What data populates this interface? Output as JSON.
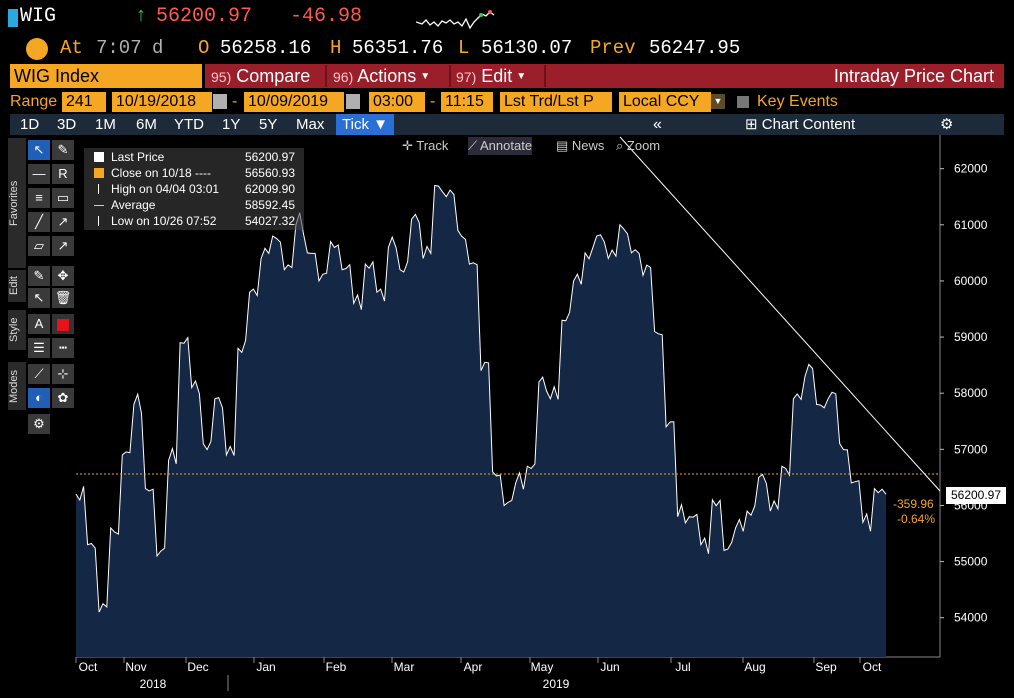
{
  "quote": {
    "ticker": "WIG",
    "last": "56200.97",
    "change": "-46.98",
    "at_label": "At",
    "time": "7:07",
    "time_suffix": "d",
    "open_label": "O",
    "open": "56258.16",
    "high_label": "H",
    "high": "56351.76",
    "low_label": "L",
    "low": "56130.07",
    "prev_label": "Prev",
    "prev": "56247.95"
  },
  "function_bar": {
    "security": "WIG Index",
    "compare_num": "95)",
    "compare": "Compare",
    "actions_num": "96)",
    "actions": "Actions",
    "edit_num": "97)",
    "edit": "Edit",
    "title": "Intraday Price Chart"
  },
  "range_bar": {
    "range_label": "Range",
    "days": "241",
    "start_date": "10/19/2018",
    "end_date": "10/09/2019",
    "start_time": "03:00",
    "end_time": "11:15",
    "trade_type": "Lst Trd/Lst P",
    "currency": "Local CCY",
    "key_events": "Key Events"
  },
  "tabs": [
    "1D",
    "3D",
    "1M",
    "6M",
    "YTD",
    "1Y",
    "5Y",
    "Max",
    "Tick ▼"
  ],
  "chart_content": "Chart Content",
  "toolbox": {
    "favorites": "Favorites",
    "edit": "Edit",
    "style": "Style",
    "modes": "Modes"
  },
  "annotate_bar": [
    "Track",
    "Annotate",
    "News",
    "Zoom"
  ],
  "legend": [
    {
      "label": "Last Price",
      "value": "56200.97",
      "color": "#ffffff"
    },
    {
      "label": "Close on 10/18 ----",
      "value": "56560.93",
      "color": "#f5a623"
    },
    {
      "label": "High on 04/04 03:01",
      "value": "62009.90",
      "color": "#ffffff"
    },
    {
      "label": "Average",
      "value": "58592.45",
      "color": "#ffffff"
    },
    {
      "label": "Low on 10/26 07:52",
      "value": "54027.32",
      "color": "#ffffff"
    }
  ],
  "price_tag": "56200.97",
  "change_tag": "-359.96",
  "change_pct_tag": "-0.64%",
  "chart_data": {
    "type": "area",
    "y_ticks": [
      "54000",
      "55000",
      "56000",
      "57000",
      "58000",
      "59000",
      "60000",
      "61000",
      "62000"
    ],
    "ylim": [
      53300,
      62600
    ],
    "x_ticks": [
      "Oct",
      "Nov",
      "Dec",
      "Jan",
      "Feb",
      "Mar",
      "Apr",
      "May",
      "Jun",
      "Jul",
      "Aug",
      "Sep",
      "Oct"
    ],
    "years": [
      "2018",
      "2019"
    ],
    "reference_close": 56560.93,
    "series": [
      {
        "values": [
          56200,
          55300,
          54100,
          55600,
          56900,
          57800,
          56300,
          55100,
          56800,
          58900,
          58100,
          57100,
          57900,
          56900,
          58800,
          59800,
          60400,
          60800,
          60200,
          61000,
          60500,
          60000,
          60700,
          60200,
          59600,
          60300,
          59800,
          60600,
          60200,
          61100,
          60400,
          61700,
          61500,
          60900,
          60300,
          58400,
          56600,
          56000,
          56400,
          56700,
          58200,
          57900,
          59300,
          60000,
          60500,
          60800,
          60400,
          61000,
          60500,
          60100,
          59100,
          57400,
          55800,
          55800,
          55300,
          56100,
          55200,
          55600,
          55900,
          56500,
          55900,
          56700,
          57900,
          58300,
          57800,
          57900,
          57100,
          56400,
          55700,
          56300,
          56200
        ]
      }
    ],
    "colors": {
      "fill": "#142744",
      "line": "#ffffff",
      "close_line": "#f5a623",
      "trend": "#ffffff"
    }
  }
}
